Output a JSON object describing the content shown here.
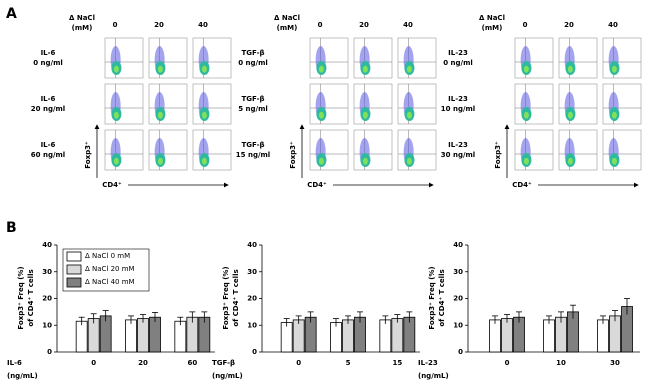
{
  "panel_labels": [
    "A",
    "B"
  ],
  "flow_blocks": [
    {
      "header": [
        "Δ NaCl",
        "(mM)"
      ],
      "columns": [
        "0",
        "20",
        "40"
      ],
      "rows": [
        [
          "IL-6",
          "0 ng/ml"
        ],
        [
          "IL-6",
          "20 ng/ml"
        ],
        [
          "IL-6",
          "60 ng/ml"
        ]
      ],
      "ylabel": "Foxp3⁺",
      "xlabel": "CD4⁺"
    },
    {
      "header": [
        "Δ NaCl",
        "(mM)"
      ],
      "columns": [
        "0",
        "20",
        "40"
      ],
      "rows": [
        [
          "TGF-β",
          "0 ng/ml"
        ],
        [
          "TGF-β",
          "5 ng/ml"
        ],
        [
          "TGF-β",
          "15 ng/ml"
        ]
      ],
      "ylabel": "Foxp3⁺",
      "xlabel": "CD4⁺"
    },
    {
      "header": [
        "Δ NaCl",
        "(mM)"
      ],
      "columns": [
        "0",
        "20",
        "40"
      ],
      "rows": [
        [
          "IL-23",
          "0 ng/ml"
        ],
        [
          "IL-23",
          "10 ng/ml"
        ],
        [
          "IL-23",
          "30 ng/ml"
        ]
      ],
      "ylabel": "Foxp3⁺",
      "xlabel": "CD4⁺"
    }
  ],
  "chart_data": [
    {
      "type": "bar",
      "ylabel": [
        "Foxp3⁺ Freq (%)",
        "of CD4⁺ T cells"
      ],
      "xlabel": [
        "IL-6",
        "(ng/mL)"
      ],
      "categories": [
        "0",
        "20",
        "60"
      ],
      "ylim": [
        0,
        40
      ],
      "yticks": [
        0,
        10,
        20,
        30,
        40
      ],
      "legend": "upper left",
      "series": [
        {
          "name": "Δ NaCl 0 mM",
          "color": "#ffffff",
          "values": [
            11.5,
            12,
            11.5
          ],
          "errors": [
            1.5,
            1.5,
            1.5
          ]
        },
        {
          "name": "Δ NaCl 20 mM",
          "color": "#d9d9d9",
          "values": [
            12.5,
            12.5,
            13
          ],
          "errors": [
            1.8,
            1.5,
            2
          ]
        },
        {
          "name": "Δ NaCl 40 mM",
          "color": "#808080",
          "values": [
            13.5,
            13,
            13
          ],
          "errors": [
            2,
            1.8,
            2
          ]
        }
      ]
    },
    {
      "type": "bar",
      "ylabel": [
        "Foxp3⁺ Freq (%)",
        "of CD4⁺ T cells"
      ],
      "xlabel": [
        "TGF-β",
        "(ng/mL)"
      ],
      "categories": [
        "0",
        "5",
        "15"
      ],
      "ylim": [
        0,
        40
      ],
      "yticks": [
        0,
        10,
        20,
        30,
        40
      ],
      "series": [
        {
          "color": "#ffffff",
          "values": [
            11,
            11,
            12
          ],
          "errors": [
            1.5,
            1.5,
            1.5
          ]
        },
        {
          "color": "#d9d9d9",
          "values": [
            12,
            12,
            12.5
          ],
          "errors": [
            1.5,
            1.5,
            1.5
          ]
        },
        {
          "color": "#808080",
          "values": [
            13,
            13,
            13
          ],
          "errors": [
            2,
            2,
            2
          ]
        }
      ]
    },
    {
      "type": "bar",
      "ylabel": [
        "Foxp3⁺ Freq (%)",
        "of CD4⁺ T cells"
      ],
      "xlabel": [
        "IL-23",
        "(ng/mL)"
      ],
      "categories": [
        "0",
        "10",
        "30"
      ],
      "ylim": [
        0,
        40
      ],
      "yticks": [
        0,
        10,
        20,
        30,
        40
      ],
      "series": [
        {
          "color": "#ffffff",
          "values": [
            12,
            12,
            12
          ],
          "errors": [
            1.5,
            1.5,
            1.5
          ]
        },
        {
          "color": "#d9d9d9",
          "values": [
            12.5,
            13,
            13.5
          ],
          "errors": [
            1.5,
            2,
            2
          ]
        },
        {
          "color": "#808080",
          "values": [
            13,
            15,
            17
          ],
          "errors": [
            2,
            2.5,
            3
          ]
        }
      ]
    }
  ]
}
